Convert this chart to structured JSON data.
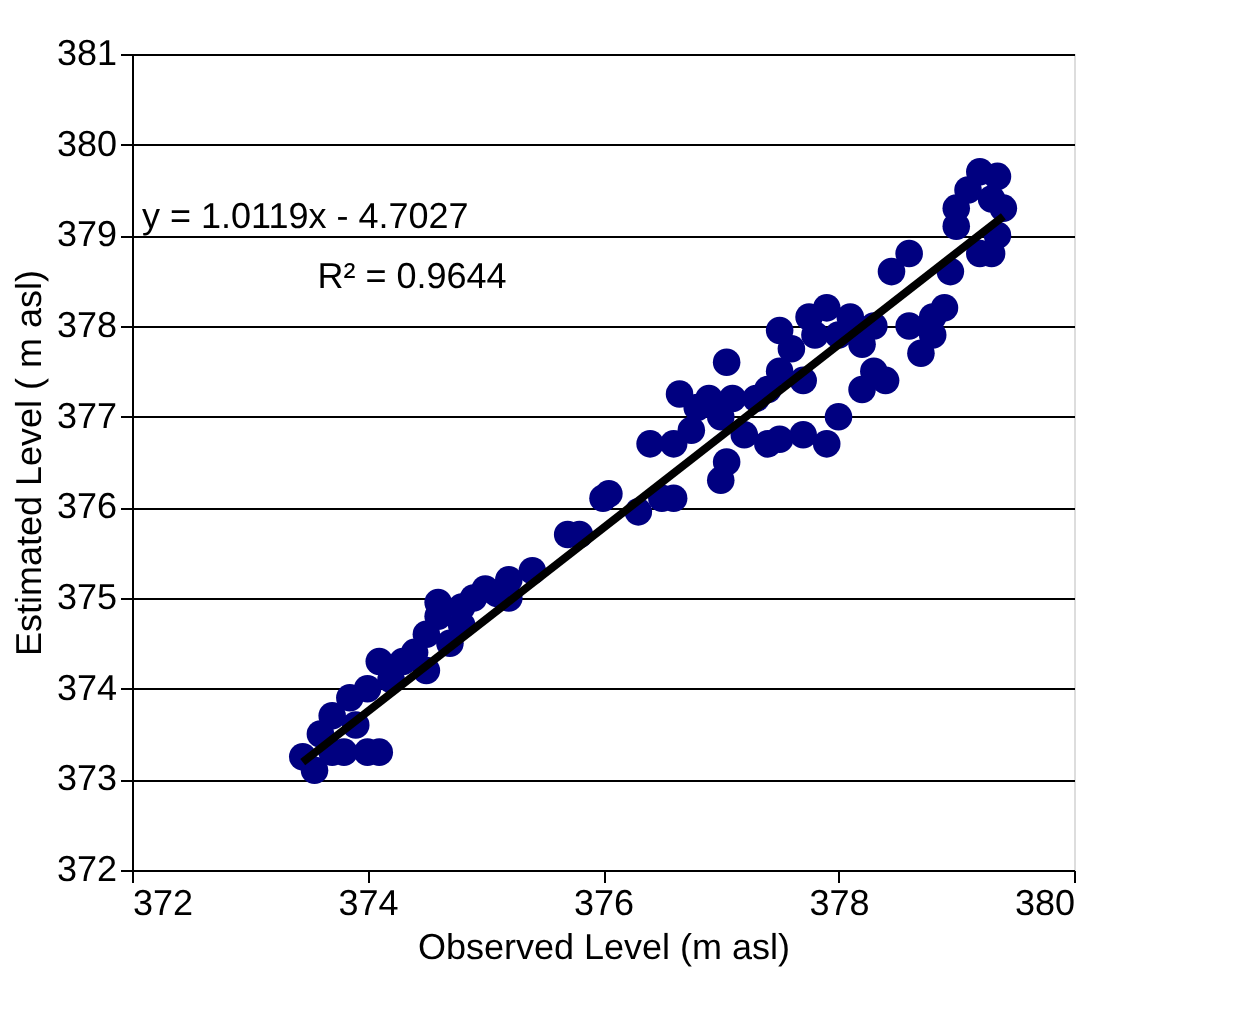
{
  "chart_data": {
    "type": "scatter",
    "xlabel": "Observed Level (m asl)",
    "ylabel": "Estimated Level ( m asl)",
    "xlim": [
      372,
      380
    ],
    "xticks": [
      372,
      374,
      376,
      378,
      380
    ],
    "ylim": [
      372,
      381
    ],
    "yticks": [
      372,
      373,
      374,
      375,
      376,
      377,
      378,
      379,
      380,
      381
    ],
    "grid": "y",
    "annotations": [
      "y = 1.0119x - 4.7027",
      "R² = 0.9644"
    ],
    "series": [
      {
        "marker": "circle",
        "color": "#000080",
        "x": [
          373.45,
          373.55,
          373.7,
          373.6,
          373.7,
          373.8,
          373.9,
          373.85,
          374.0,
          374.1,
          374.0,
          374.1,
          374.2,
          374.3,
          374.4,
          374.5,
          374.5,
          374.6,
          374.7,
          374.6,
          374.8,
          374.9,
          374.8,
          375.0,
          375.1,
          375.2,
          375.2,
          375.4,
          375.7,
          375.8,
          376.0,
          376.05,
          376.3,
          376.5,
          376.4,
          376.6,
          376.6,
          376.65,
          376.8,
          376.75,
          376.9,
          377.0,
          377.05,
          377.0,
          377.1,
          377.2,
          377.3,
          377.05,
          377.4,
          377.4,
          377.5,
          377.5,
          377.5,
          377.6,
          377.7,
          377.7,
          377.75,
          377.8,
          377.9,
          377.9,
          378.0,
          378.0,
          378.1,
          378.2,
          378.2,
          378.3,
          378.3,
          378.4,
          378.45,
          378.6,
          378.6,
          378.7,
          378.8,
          378.8,
          378.9,
          378.95,
          379.0,
          379.0,
          379.1,
          379.2,
          379.2,
          379.35,
          379.3,
          379.4,
          379.35,
          379.3
        ],
        "values": [
          373.25,
          373.1,
          373.3,
          373.5,
          373.7,
          373.3,
          373.6,
          373.9,
          373.3,
          373.3,
          374.0,
          374.3,
          374.1,
          374.3,
          374.4,
          374.2,
          374.6,
          374.8,
          374.5,
          374.95,
          374.9,
          375.0,
          374.7,
          375.1,
          375.05,
          375.0,
          375.2,
          375.3,
          375.7,
          375.7,
          376.1,
          376.15,
          375.95,
          376.1,
          376.7,
          376.7,
          376.1,
          377.25,
          377.1,
          376.85,
          377.2,
          376.3,
          376.5,
          377.0,
          377.2,
          376.8,
          377.2,
          377.6,
          377.3,
          376.7,
          377.5,
          376.75,
          377.95,
          377.75,
          376.8,
          377.4,
          378.1,
          377.9,
          378.2,
          376.7,
          377.0,
          377.9,
          378.1,
          377.3,
          377.8,
          378.0,
          377.5,
          377.4,
          378.6,
          378.0,
          378.8,
          377.7,
          377.9,
          378.1,
          378.2,
          378.6,
          379.3,
          379.1,
          379.5,
          379.7,
          378.8,
          379.65,
          379.4,
          379.3,
          379.0,
          378.8
        ]
      },
      {
        "type": "line",
        "color": "#000000",
        "x": [
          373.45,
          379.4
        ],
        "values": [
          373.19,
          379.21
        ]
      }
    ]
  }
}
